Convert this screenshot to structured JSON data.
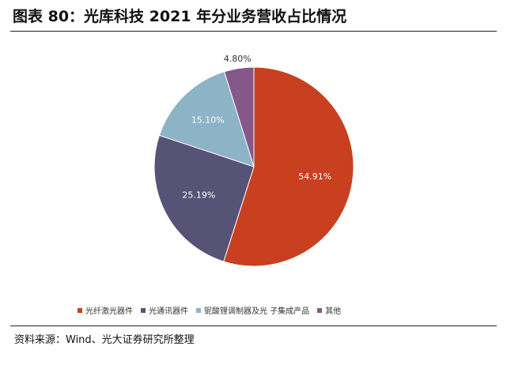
{
  "figure_title": "图表 80：光库科技 2021 年分业务营收占比情况",
  "source": "资料来源：Wind、光大证券研究所整理",
  "chart_data": {
    "type": "pie",
    "title": "",
    "slices": [
      {
        "name": "光纤激光器件",
        "value": 54.91,
        "label": "54.91%",
        "color": "#C8401F"
      },
      {
        "name": "光通讯器件",
        "value": 25.19,
        "label": "25.19%",
        "color": "#565377"
      },
      {
        "name": "铌酸锂调制器及光 子集成产品",
        "value": 15.1,
        "label": "15.10%",
        "color": "#8DB3C7"
      },
      {
        "name": "其他",
        "value": 4.8,
        "label": "4.80%",
        "color": "#86588A"
      }
    ],
    "legend_position": "bottom"
  }
}
